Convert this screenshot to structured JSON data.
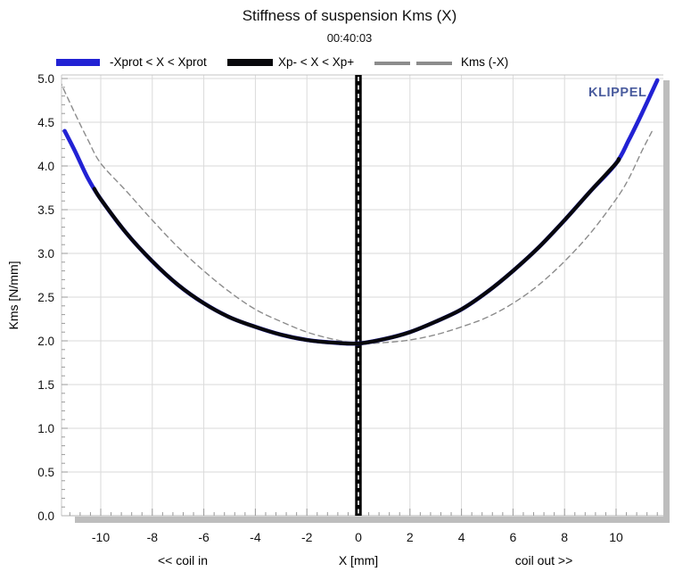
{
  "chart_data": {
    "type": "line",
    "title": "Stiffness of suspension Kms (X)",
    "subtitle": "00:40:03",
    "watermark": "KLIPPEL",
    "watermark_color": "#4a5c9e",
    "xlabel": "X [mm]",
    "xlabel_left": "<< coil in",
    "xlabel_right": "coil out >>",
    "ylabel": "Kms [N/mm]",
    "xlim": [
      -11.6,
      11.9
    ],
    "ylim": [
      0,
      5.04
    ],
    "grid": {
      "on": true,
      "color": "#dadada",
      "x_step": 2,
      "y_step": 0.5
    },
    "x_ticks": [
      {
        "v": -10,
        "label": "-10"
      },
      {
        "v": -8,
        "label": "-8"
      },
      {
        "v": -6,
        "label": "-6"
      },
      {
        "v": -4,
        "label": "-4"
      },
      {
        "v": -2,
        "label": "-2"
      },
      {
        "v": 0,
        "label": "0"
      },
      {
        "v": 2,
        "label": "2"
      },
      {
        "v": 4,
        "label": "4"
      },
      {
        "v": 6,
        "label": "6"
      },
      {
        "v": 8,
        "label": "8"
      },
      {
        "v": 10,
        "label": "10"
      }
    ],
    "x_minor_step": 0.4,
    "y_ticks": [
      {
        "v": 0.0,
        "label": "0.0"
      },
      {
        "v": 0.5,
        "label": "0.5"
      },
      {
        "v": 1.0,
        "label": "1.0"
      },
      {
        "v": 1.5,
        "label": "1.5"
      },
      {
        "v": 2.0,
        "label": "2.0"
      },
      {
        "v": 2.5,
        "label": "2.5"
      },
      {
        "v": 3.0,
        "label": "3.0"
      },
      {
        "v": 3.5,
        "label": "3.5"
      },
      {
        "v": 4.0,
        "label": "4.0"
      },
      {
        "v": 4.5,
        "label": "4.5"
      },
      {
        "v": 5.0,
        "label": "5.0"
      }
    ],
    "y_minor_step": 0.1,
    "zero_marker": {
      "x": 0,
      "color": "#000000",
      "centerline": "white-dashed"
    },
    "legend": [
      {
        "label": "-Xprot < X < Xprot",
        "color": "#2222d4",
        "style": "solid-thick"
      },
      {
        "label": "Xp- < X < Xp+",
        "color": "#08080c",
        "style": "solid-thick"
      },
      {
        "label": "Kms (-X)",
        "color": "#8c8c8c",
        "style": "dashed"
      }
    ],
    "series": [
      {
        "name": "-Xprot < X < Xprot",
        "color": "#2222d4",
        "width": 4.6,
        "dash": null,
        "points": [
          [
            -11.4,
            4.4
          ],
          [
            -11.0,
            4.17
          ],
          [
            -10.5,
            3.86
          ],
          [
            -10.0,
            3.62
          ],
          [
            -9.0,
            3.23
          ],
          [
            -8.0,
            2.91
          ],
          [
            -7.0,
            2.64
          ],
          [
            -6.0,
            2.43
          ],
          [
            -5.0,
            2.27
          ],
          [
            -4.0,
            2.16
          ],
          [
            -3.0,
            2.07
          ],
          [
            -2.0,
            2.01
          ],
          [
            -1.0,
            1.98
          ],
          [
            0.0,
            1.97
          ],
          [
            1.0,
            2.02
          ],
          [
            2.0,
            2.1
          ],
          [
            3.0,
            2.22
          ],
          [
            4.0,
            2.36
          ],
          [
            5.0,
            2.56
          ],
          [
            6.0,
            2.8
          ],
          [
            7.0,
            3.07
          ],
          [
            8.0,
            3.38
          ],
          [
            9.0,
            3.71
          ],
          [
            10.0,
            4.03
          ],
          [
            10.5,
            4.3
          ],
          [
            11.0,
            4.6
          ],
          [
            11.6,
            4.98
          ]
        ]
      },
      {
        "name": "Xp- < X < Xp+",
        "color": "#08080c",
        "width": 4.2,
        "dash": null,
        "points": [
          [
            -10.25,
            3.74
          ],
          [
            -10.0,
            3.62
          ],
          [
            -9.0,
            3.23
          ],
          [
            -8.0,
            2.91
          ],
          [
            -7.0,
            2.64
          ],
          [
            -6.0,
            2.43
          ],
          [
            -5.0,
            2.27
          ],
          [
            -4.0,
            2.16
          ],
          [
            -3.0,
            2.07
          ],
          [
            -2.0,
            2.01
          ],
          [
            -1.0,
            1.98
          ],
          [
            0.0,
            1.97
          ],
          [
            1.0,
            2.02
          ],
          [
            2.0,
            2.1
          ],
          [
            3.0,
            2.22
          ],
          [
            4.0,
            2.36
          ],
          [
            5.0,
            2.56
          ],
          [
            6.0,
            2.8
          ],
          [
            7.0,
            3.07
          ],
          [
            8.0,
            3.38
          ],
          [
            9.0,
            3.71
          ],
          [
            10.0,
            4.03
          ],
          [
            10.1,
            4.08
          ]
        ]
      },
      {
        "name": "Kms (-X)",
        "color": "#8c8c8c",
        "width": 1.4,
        "dash": "6 4.5",
        "points": [
          [
            -11.6,
            4.98
          ],
          [
            -11.0,
            4.6
          ],
          [
            -10.5,
            4.3
          ],
          [
            -10.0,
            4.03
          ],
          [
            -9.0,
            3.71
          ],
          [
            -8.0,
            3.38
          ],
          [
            -7.0,
            3.07
          ],
          [
            -6.0,
            2.8
          ],
          [
            -5.0,
            2.56
          ],
          [
            -4.0,
            2.36
          ],
          [
            -3.0,
            2.22
          ],
          [
            -2.0,
            2.1
          ],
          [
            -1.0,
            2.02
          ],
          [
            0.0,
            1.97
          ],
          [
            1.0,
            1.98
          ],
          [
            2.0,
            2.01
          ],
          [
            3.0,
            2.07
          ],
          [
            4.0,
            2.16
          ],
          [
            5.0,
            2.27
          ],
          [
            6.0,
            2.43
          ],
          [
            7.0,
            2.64
          ],
          [
            8.0,
            2.91
          ],
          [
            9.0,
            3.23
          ],
          [
            10.0,
            3.62
          ],
          [
            10.5,
            3.86
          ],
          [
            11.0,
            4.17
          ],
          [
            11.4,
            4.4
          ]
        ]
      }
    ]
  }
}
